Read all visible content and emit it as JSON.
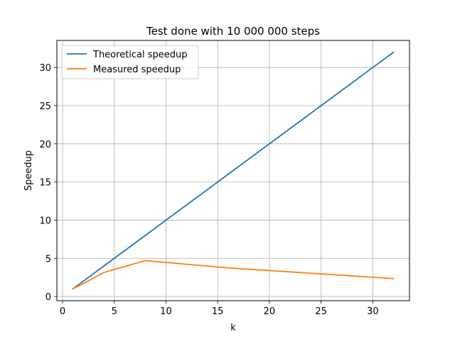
{
  "chart_data": {
    "type": "line",
    "title": "Test done with 10 000 000 steps",
    "xlabel": "k",
    "ylabel": "Speedup",
    "xlim": [
      -0.55,
      33.55
    ],
    "ylim": [
      -0.55,
      33.55
    ],
    "xticks": [
      0,
      5,
      10,
      15,
      20,
      25,
      30
    ],
    "yticks": [
      0,
      5,
      10,
      15,
      20,
      25,
      30
    ],
    "grid": true,
    "legend_position": "upper left",
    "series": [
      {
        "name": "Theoretical speedup",
        "color": "#1f77b4",
        "x": [
          1,
          2,
          4,
          8,
          16,
          32
        ],
        "y": [
          1,
          2,
          4,
          8,
          16,
          32
        ]
      },
      {
        "name": "Measured speedup",
        "color": "#ff7f0e",
        "x": [
          1,
          2,
          4,
          8,
          16,
          32
        ],
        "y": [
          1.0,
          1.7,
          3.15,
          4.7,
          3.75,
          2.35
        ]
      }
    ]
  }
}
